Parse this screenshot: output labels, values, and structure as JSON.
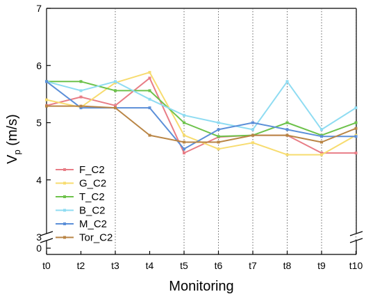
{
  "chart_data": {
    "type": "line",
    "xlabel": "Monitoring",
    "ylabel_main": "V",
    "ylabel_sub": "p",
    "ylabel_unit": " (m/s)",
    "categories": [
      "t0",
      "t2",
      "t3",
      "t4",
      "t5",
      "t6",
      "t7",
      "t8",
      "t9",
      "t10"
    ],
    "y_ticks_upper": [
      3,
      4,
      5,
      6,
      7
    ],
    "y_ticks_lower": [
      0
    ],
    "ylim_upper": [
      3,
      7
    ],
    "axis_break": "between 0 and 3",
    "vertical_dotted_gridlines_at": [
      "t3",
      "t5",
      "t6",
      "t7",
      "t8",
      "t9",
      "t10"
    ],
    "legend_position": "bottom-left",
    "series": [
      {
        "name": "F_C2",
        "color": "#e87d86",
        "values": [
          5.3,
          5.45,
          5.3,
          5.78,
          4.47,
          4.75,
          4.78,
          4.78,
          4.47,
          4.47
        ]
      },
      {
        "name": "G_C2",
        "color": "#f7dc6f",
        "values": [
          5.4,
          5.27,
          5.7,
          5.88,
          4.78,
          4.54,
          4.65,
          4.44,
          4.44,
          4.78
        ]
      },
      {
        "name": "T_C2",
        "color": "#6dc24b",
        "values": [
          5.72,
          5.72,
          5.56,
          5.56,
          5.0,
          4.76,
          4.78,
          5.0,
          4.78,
          5.0
        ]
      },
      {
        "name": "B_C2",
        "color": "#8fdcf2",
        "values": [
          5.72,
          5.56,
          5.72,
          5.41,
          5.13,
          5.0,
          4.88,
          5.72,
          4.88,
          5.26
        ]
      },
      {
        "name": "M_C2",
        "color": "#5b8fd8",
        "values": [
          5.72,
          5.26,
          5.26,
          5.26,
          4.54,
          4.88,
          5.0,
          4.88,
          4.76,
          4.76
        ]
      },
      {
        "name": "Tor_C2",
        "color": "#b98545",
        "values": [
          5.29,
          5.29,
          5.26,
          4.78,
          4.66,
          4.66,
          4.78,
          4.78,
          4.66,
          4.9
        ]
      }
    ]
  }
}
